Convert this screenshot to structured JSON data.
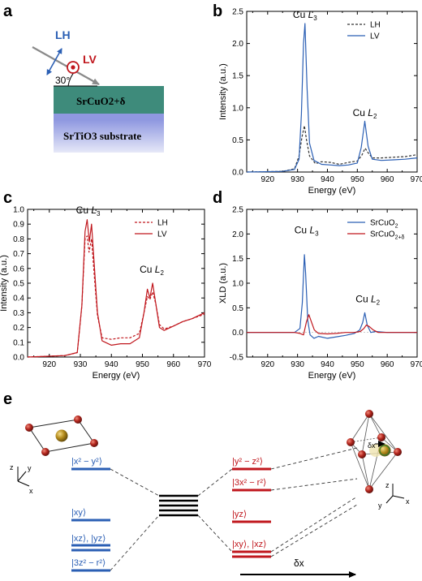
{
  "panel_labels": {
    "a": "a",
    "b": "b",
    "c": "c",
    "d": "d",
    "e": "e"
  },
  "panel_a": {
    "lh_label": "LH",
    "lv_label": "LV",
    "angle_label": "30°",
    "film_label": "SrCuO2+δ",
    "substrate_label": "SrTiO3 substrate",
    "colors": {
      "lh": "#2b5fb4",
      "lv": "#c0171d",
      "film": "#3e8b7b",
      "substrate": "#a9b0e8"
    }
  },
  "chart_data": [
    {
      "id": "b",
      "type": "line",
      "xlabel": "Energy (eV)",
      "ylabel": "Intensity (a.u.)",
      "xlim": [
        913,
        970
      ],
      "ylim": [
        0,
        2.5
      ],
      "xticks": [
        "920",
        "930",
        "940",
        "950",
        "960",
        "970"
      ],
      "yticks": [
        "0.0",
        "0.5",
        "1.0",
        "1.5",
        "2.0",
        "2.5"
      ],
      "annotations": [
        "Cu L3",
        "Cu L2"
      ],
      "legend": "top-right",
      "series": [
        {
          "name": "LH",
          "color": "#333333",
          "dash": true,
          "x": [
            913,
            925,
            929,
            930.5,
            931.5,
            932.3,
            933.0,
            934.0,
            936,
            938,
            941,
            944,
            947,
            950,
            951.5,
            952.6,
            953.6,
            955,
            958,
            962,
            966,
            970
          ],
          "y": [
            0.0,
            0.01,
            0.05,
            0.25,
            0.55,
            0.72,
            0.5,
            0.25,
            0.13,
            0.16,
            0.15,
            0.12,
            0.15,
            0.17,
            0.26,
            0.37,
            0.3,
            0.22,
            0.22,
            0.23,
            0.24,
            0.27
          ]
        },
        {
          "name": "LV",
          "color": "#2b5fb4",
          "dash": false,
          "x": [
            913,
            925,
            929,
            930.5,
            931.3,
            932.0,
            932.5,
            933.2,
            934.0,
            935.5,
            938,
            941,
            944,
            947,
            950,
            951.3,
            952.5,
            953.6,
            955,
            958,
            962,
            966,
            970
          ],
          "y": [
            0.0,
            0.01,
            0.04,
            0.2,
            0.9,
            2.0,
            2.31,
            1.3,
            0.45,
            0.18,
            0.12,
            0.11,
            0.1,
            0.11,
            0.14,
            0.38,
            0.79,
            0.4,
            0.2,
            0.18,
            0.19,
            0.2,
            0.22
          ]
        }
      ]
    },
    {
      "id": "c",
      "type": "line",
      "xlabel": "Energy (eV)",
      "ylabel": "Intensity (a.u.)",
      "xlim": [
        913,
        970
      ],
      "ylim": [
        0,
        1.0
      ],
      "xticks": [
        "920",
        "930",
        "940",
        "950",
        "960",
        "970"
      ],
      "yticks": [
        "0.0",
        "0.1",
        "0.2",
        "0.3",
        "0.4",
        "0.5",
        "0.6",
        "0.7",
        "0.8",
        "0.9",
        "1.0"
      ],
      "annotations": [
        "Cu L3",
        "Cu L2"
      ],
      "legend": "top-right",
      "series": [
        {
          "name": "LH",
          "color": "#c0171d",
          "dash": true,
          "x": [
            913,
            925,
            929,
            930.5,
            931.5,
            932.2,
            932.8,
            933.6,
            934.5,
            935.5,
            937,
            940,
            943,
            946,
            949,
            950.5,
            951.6,
            952.4,
            953.3,
            954.3,
            955.5,
            957,
            960,
            963,
            966,
            970
          ],
          "y": [
            0.0,
            0.01,
            0.03,
            0.35,
            0.8,
            0.82,
            0.71,
            0.8,
            0.55,
            0.28,
            0.13,
            0.12,
            0.13,
            0.13,
            0.16,
            0.3,
            0.41,
            0.39,
            0.44,
            0.36,
            0.22,
            0.19,
            0.21,
            0.24,
            0.26,
            0.29
          ]
        },
        {
          "name": "LV",
          "color": "#c0171d",
          "dash": false,
          "x": [
            913,
            925,
            929,
            930.5,
            931.5,
            932.2,
            932.9,
            933.6,
            934.5,
            935.5,
            937,
            940,
            943,
            946,
            949,
            950.5,
            951.6,
            952.4,
            953.3,
            954.3,
            955.5,
            957,
            960,
            963,
            966,
            970
          ],
          "y": [
            0.0,
            0.01,
            0.03,
            0.35,
            0.85,
            0.93,
            0.78,
            0.9,
            0.62,
            0.3,
            0.11,
            0.08,
            0.09,
            0.09,
            0.13,
            0.3,
            0.46,
            0.4,
            0.5,
            0.36,
            0.2,
            0.18,
            0.21,
            0.24,
            0.26,
            0.3
          ]
        }
      ]
    },
    {
      "id": "d",
      "type": "line",
      "xlabel": "Energy (eV)",
      "ylabel": "XLD (a.u.)",
      "xlim": [
        913,
        970
      ],
      "ylim": [
        -0.5,
        2.5
      ],
      "xticks": [
        "920",
        "930",
        "940",
        "950",
        "960",
        "970"
      ],
      "yticks": [
        "-0.5",
        "0.0",
        "0.5",
        "1.0",
        "1.5",
        "2.0",
        "2.5"
      ],
      "annotations": [
        "Cu L3",
        "Cu L2"
      ],
      "legend": "top-right",
      "series": [
        {
          "name": "SrCuO2",
          "color": "#2b5fb4",
          "dash": false,
          "x": [
            913,
            925,
            929,
            930.8,
            931.6,
            932.3,
            932.7,
            933.4,
            934.2,
            935.5,
            937,
            940,
            943,
            946,
            949,
            950.8,
            951.8,
            952.5,
            953.3,
            954.5,
            956,
            960,
            965,
            970
          ],
          "y": [
            0.0,
            0.0,
            0.0,
            0.08,
            0.6,
            1.58,
            1.2,
            0.25,
            -0.05,
            -0.12,
            -0.08,
            -0.12,
            -0.09,
            -0.06,
            -0.02,
            0.05,
            0.2,
            0.4,
            0.15,
            0.0,
            0.02,
            0.0,
            0.0,
            0.0
          ]
        },
        {
          "name": "SrCuO2+δ",
          "color": "#c0171d",
          "dash": false,
          "x": [
            913,
            925,
            929,
            930.8,
            932.0,
            933.0,
            933.8,
            934.6,
            935.6,
            937,
            940,
            943,
            946,
            949,
            951,
            952.2,
            953.0,
            954.0,
            955.3,
            957,
            960,
            965,
            970
          ],
          "y": [
            0.0,
            0.0,
            0.0,
            -0.02,
            -0.05,
            0.22,
            0.36,
            0.22,
            0.05,
            -0.02,
            -0.03,
            -0.02,
            0.0,
            0.0,
            0.02,
            0.08,
            0.15,
            0.12,
            0.05,
            0.0,
            0.0,
            0.0,
            0.0
          ]
        }
      ]
    }
  ],
  "panel_e": {
    "left_levels": [
      "|x² − y²⟩",
      "|xy⟩",
      "|xz⟩, |yz⟩",
      "|3z² − r²⟩"
    ],
    "right_levels": [
      "|y² − z²⟩",
      "|3x² − r²⟩",
      "|yz⟩",
      "|xy⟩, |xz⟩"
    ],
    "arrow_label": "δx",
    "inset_label": "δx",
    "axes_left": {
      "z": "z",
      "y": "y",
      "x": "x"
    },
    "axes_right": {
      "z": "z",
      "y": "y",
      "x": "x"
    },
    "colors": {
      "left": "#2b5fb4",
      "right": "#c0171d",
      "center": "#000000",
      "cu": "#b48b1c",
      "o": "#b3261e"
    }
  }
}
